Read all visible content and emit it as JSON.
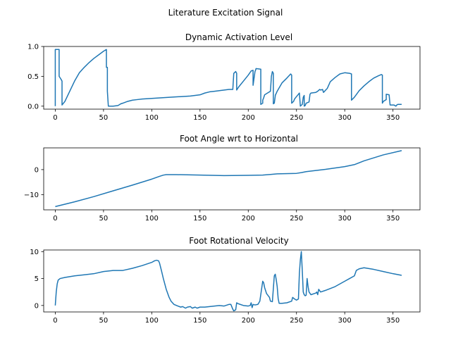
{
  "figure": {
    "suptitle": "Literature Excitation Signal"
  },
  "chart_data": [
    {
      "type": "line",
      "title": "Dynamic Activation Level",
      "xlabel": "",
      "ylabel": "",
      "xlim": [
        -12,
        378
      ],
      "ylim": [
        -0.05,
        1.0
      ],
      "xticks": [
        0,
        50,
        100,
        150,
        200,
        250,
        300,
        350
      ],
      "yticks": [
        0.0,
        0.5,
        1.0
      ],
      "ytick_labels": [
        "0.0",
        "0.5",
        "1.0"
      ],
      "grid": false,
      "color": "#1f77b4",
      "x": [
        0,
        0,
        4,
        4,
        6,
        7,
        7,
        10,
        15,
        20,
        25,
        30,
        35,
        40,
        45,
        50,
        53,
        53,
        54,
        54,
        55,
        57,
        60,
        65,
        68,
        70,
        75,
        80,
        85,
        90,
        100,
        110,
        120,
        130,
        140,
        150,
        155,
        160,
        165,
        170,
        175,
        180,
        184,
        185,
        187,
        188,
        188,
        190,
        195,
        200,
        203,
        205,
        205,
        207,
        208,
        208,
        213,
        213,
        215,
        215,
        216,
        217,
        223,
        224,
        225,
        226,
        226,
        227,
        228,
        228,
        230,
        235,
        240,
        244,
        245,
        245,
        247,
        248,
        252,
        253,
        254,
        256,
        257,
        258,
        258,
        259,
        260,
        263,
        264,
        265,
        270,
        272,
        274,
        275,
        277,
        278,
        282,
        285,
        290,
        295,
        300,
        305,
        307,
        307,
        310,
        315,
        320,
        325,
        330,
        335,
        338,
        339,
        339,
        340,
        343,
        343,
        346,
        347,
        350,
        351,
        353,
        354,
        355,
        358,
        359
      ],
      "y": [
        0.0,
        0.95,
        0.95,
        0.5,
        0.45,
        0.42,
        0.02,
        0.08,
        0.25,
        0.42,
        0.56,
        0.65,
        0.73,
        0.8,
        0.86,
        0.92,
        0.95,
        0.65,
        0.65,
        0.25,
        0.0,
        0.0,
        0.0,
        0.01,
        0.04,
        0.05,
        0.08,
        0.1,
        0.11,
        0.12,
        0.13,
        0.14,
        0.15,
        0.16,
        0.17,
        0.19,
        0.22,
        0.24,
        0.25,
        0.26,
        0.27,
        0.28,
        0.28,
        0.55,
        0.58,
        0.55,
        0.27,
        0.32,
        0.42,
        0.52,
        0.59,
        0.6,
        0.35,
        0.58,
        0.62,
        0.63,
        0.62,
        0.03,
        0.05,
        0.1,
        0.14,
        0.19,
        0.25,
        0.5,
        0.58,
        0.55,
        0.04,
        0.05,
        0.17,
        0.18,
        0.25,
        0.39,
        0.47,
        0.54,
        0.52,
        0.05,
        0.08,
        0.12,
        0.2,
        0.22,
        0.0,
        0.03,
        0.15,
        0.18,
        0.0,
        0.01,
        0.05,
        0.07,
        0.2,
        0.22,
        0.23,
        0.25,
        0.28,
        0.27,
        0.28,
        0.23,
        0.3,
        0.41,
        0.48,
        0.54,
        0.56,
        0.55,
        0.54,
        0.1,
        0.15,
        0.26,
        0.34,
        0.41,
        0.47,
        0.51,
        0.53,
        0.52,
        0.05,
        0.08,
        0.11,
        0.2,
        0.19,
        0.02,
        0.02,
        0.02,
        0.0,
        0.02,
        0.03,
        0.03,
        0.03
      ]
    },
    {
      "type": "line",
      "title": "Foot Angle wrt to Horizontal",
      "xlabel": "",
      "ylabel": "",
      "xlim": [
        -12,
        378
      ],
      "ylim": [
        -16.1,
        8.7
      ],
      "xticks": [
        0,
        50,
        100,
        150,
        200,
        250,
        300,
        350
      ],
      "yticks": [
        -10,
        0
      ],
      "ytick_labels": [
        "−10",
        "0"
      ],
      "grid": false,
      "color": "#1f77b4",
      "x": [
        0,
        20,
        40,
        60,
        80,
        100,
        108,
        112,
        115,
        118,
        125,
        150,
        175,
        200,
        215,
        230,
        250,
        255,
        260,
        280,
        300,
        310,
        320,
        340,
        359
      ],
      "y": [
        -14.8,
        -12.9,
        -10.8,
        -8.5,
        -6.2,
        -3.8,
        -2.7,
        -2.2,
        -2.0,
        -2.0,
        -2.0,
        -2.2,
        -2.4,
        -2.3,
        -2.2,
        -1.7,
        -1.5,
        -1.2,
        -0.8,
        0.1,
        1.2,
        2.0,
        3.5,
        5.9,
        7.6
      ]
    },
    {
      "type": "line",
      "title": "Foot Rotational Velocity",
      "xlabel": "",
      "ylabel": "",
      "xlim": [
        -12,
        378
      ],
      "ylim": [
        -1.2,
        10.3
      ],
      "xticks": [
        0,
        50,
        100,
        150,
        200,
        250,
        300,
        350
      ],
      "yticks": [
        0,
        5,
        10
      ],
      "ytick_labels": [
        "0",
        "5",
        "10"
      ],
      "grid": false,
      "color": "#1f77b4",
      "x": [
        0,
        1,
        2,
        3,
        5,
        10,
        20,
        30,
        40,
        50,
        60,
        70,
        80,
        90,
        100,
        103,
        105,
        107,
        108,
        110,
        112,
        115,
        118,
        120,
        123,
        127,
        130,
        132,
        135,
        137,
        140,
        142,
        145,
        147,
        150,
        155,
        160,
        165,
        170,
        175,
        180,
        182,
        184,
        185,
        186,
        187,
        188,
        190,
        195,
        200,
        202,
        203,
        204,
        205,
        207,
        210,
        212,
        215,
        216,
        217,
        219,
        222,
        223,
        225,
        227,
        228,
        229,
        230,
        231,
        232,
        235,
        240,
        245,
        246,
        248,
        250,
        252,
        253,
        254,
        255,
        256,
        257,
        258,
        259,
        260,
        261,
        262,
        263,
        265,
        270,
        271,
        272,
        273,
        275,
        280,
        290,
        300,
        305,
        310,
        312,
        315,
        320,
        330,
        340,
        350,
        359
      ],
      "y": [
        0.0,
        2.5,
        4.0,
        4.7,
        5.0,
        5.2,
        5.5,
        5.7,
        5.9,
        6.3,
        6.5,
        6.5,
        6.9,
        7.4,
        8.0,
        8.3,
        8.4,
        8.3,
        7.9,
        6.5,
        5.0,
        3.0,
        1.5,
        0.8,
        0.2,
        -0.1,
        -0.3,
        -0.2,
        -0.5,
        -0.3,
        -0.2,
        -0.5,
        -0.3,
        -0.5,
        -0.3,
        -0.3,
        -0.2,
        -0.1,
        0.0,
        -0.1,
        0.2,
        0.2,
        -0.7,
        -1.0,
        -0.9,
        -0.8,
        0.5,
        0.3,
        0.0,
        -0.1,
        0.0,
        0.5,
        -0.4,
        0.2,
        0.1,
        0.2,
        0.8,
        4.5,
        4.2,
        3.3,
        2.2,
        1.5,
        0.8,
        0.7,
        5.5,
        5.8,
        4.8,
        3.5,
        1.3,
        0.4,
        0.4,
        0.5,
        0.8,
        1.5,
        1.2,
        1.0,
        1.2,
        6.0,
        8.5,
        10.0,
        6.5,
        2.5,
        2.0,
        1.8,
        1.9,
        5.0,
        3.5,
        2.5,
        2.0,
        2.3,
        2.5,
        2.0,
        3.0,
        2.5,
        2.8,
        3.5,
        4.5,
        5.0,
        5.5,
        6.5,
        6.8,
        7.0,
        6.7,
        6.3,
        5.9,
        5.6
      ]
    }
  ]
}
